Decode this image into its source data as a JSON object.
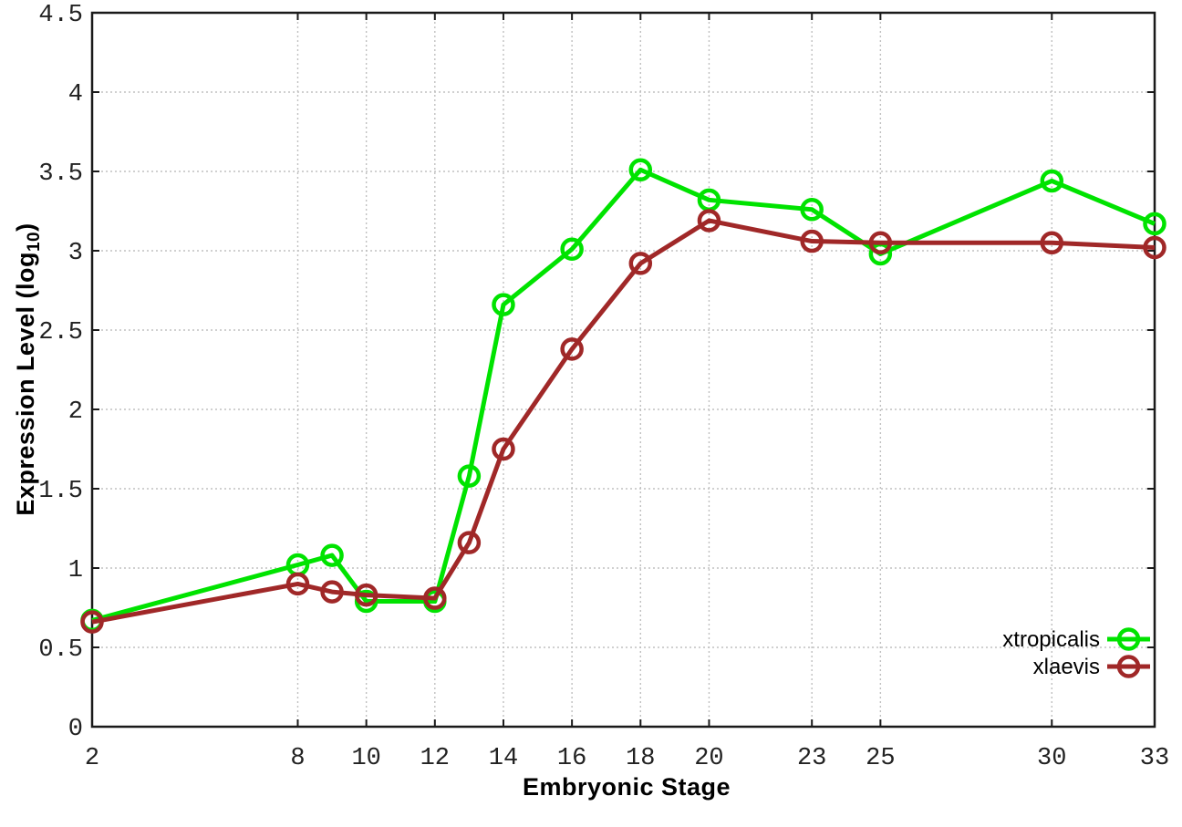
{
  "chart_data": {
    "type": "line",
    "title": "",
    "xlabel": "Embryonic Stage",
    "ylabel": {
      "main": "Expression Level (log",
      "sub": "10",
      "end": ")"
    },
    "xlim": [
      2,
      33
    ],
    "ylim": [
      0,
      4.5
    ],
    "grid": true,
    "grid_style": "dotted",
    "marker": "open-circle",
    "legend_position": "bottom-right-inside",
    "x": [
      2,
      8,
      9,
      10,
      12,
      13,
      14,
      16,
      18,
      20,
      23,
      25,
      30,
      33
    ],
    "series": [
      {
        "name": "xtropicalis",
        "color": "#00e300",
        "values": [
          0.67,
          1.02,
          1.08,
          0.79,
          0.79,
          1.58,
          2.66,
          3.01,
          3.51,
          3.32,
          3.26,
          2.98,
          3.44,
          3.17
        ]
      },
      {
        "name": "xlaevis",
        "color": "#a02828",
        "values": [
          0.66,
          0.9,
          0.85,
          0.83,
          0.81,
          1.16,
          1.75,
          2.38,
          2.92,
          3.19,
          3.06,
          3.05,
          3.05,
          3.02
        ]
      }
    ],
    "x_ticks": {
      "values": [
        2,
        8,
        10,
        12,
        14,
        16,
        18,
        20,
        23,
        25,
        30,
        33
      ],
      "labels": [
        "2",
        "8",
        "10",
        "12",
        "14",
        "16",
        "18",
        "20",
        "23",
        "25",
        "30",
        "33"
      ]
    },
    "y_ticks": {
      "values": [
        0,
        0.5,
        1,
        1.5,
        2,
        2.5,
        3,
        3.5,
        4,
        4.5
      ],
      "labels": [
        "0",
        "0.5",
        "1",
        "1.5",
        "2",
        "2.5",
        "3",
        "3.5",
        "4",
        "4.5"
      ]
    },
    "colors": {
      "grid": "#c0c0c0",
      "axis_border": "#1a1a1a",
      "tick_text": "#222222"
    }
  }
}
